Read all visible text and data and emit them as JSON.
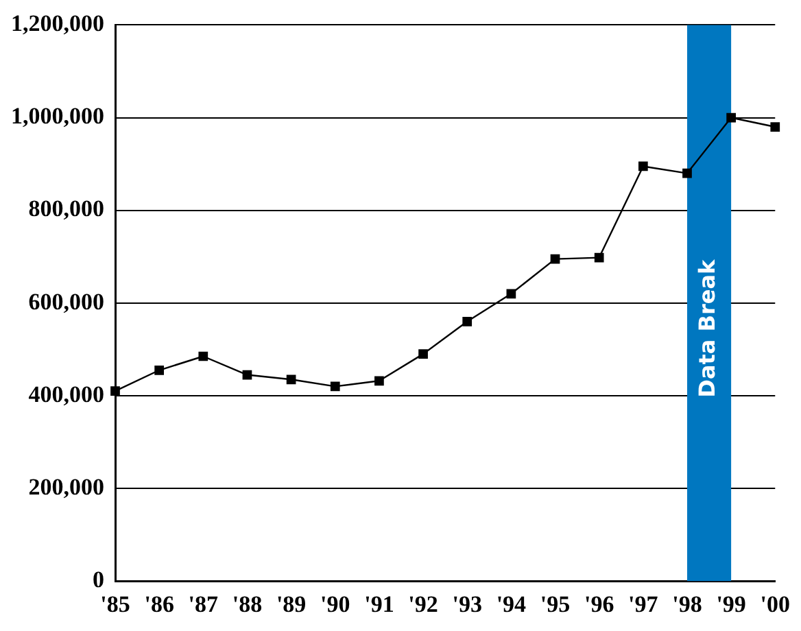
{
  "chart_data": {
    "type": "line",
    "categories": [
      "'85",
      "'86",
      "'87",
      "'88",
      "'89",
      "'90",
      "'91",
      "'92",
      "'93",
      "'94",
      "'95",
      "'96",
      "'97",
      "'98",
      "'99",
      "'00"
    ],
    "series": [
      {
        "color": "#000000",
        "values": [
          410000,
          455000,
          485000,
          445000,
          435000,
          420000,
          432000,
          490000,
          560000,
          620000,
          695000,
          698000,
          895000,
          880000,
          1000000,
          980000
        ]
      }
    ],
    "ylim": [
      0,
      1200000
    ],
    "yticks": [
      0,
      {
        "value": 200000,
        "label": "200,000"
      },
      {
        "value": 400000,
        "label": "400,000"
      },
      {
        "value": 600000,
        "label": "600,000"
      },
      {
        "value": 800000,
        "label": "800,000"
      },
      {
        "value": 1000000,
        "label": "1,000,000"
      },
      {
        "value": 1200000,
        "label": "1,200,000"
      }
    ],
    "grid": "y",
    "legend": false,
    "marker": "square",
    "line_style": "solid",
    "bands": [
      {
        "axis": "x",
        "from": "'98",
        "to": "'99",
        "label": "Data Break",
        "color": "#0077c0"
      }
    ]
  }
}
